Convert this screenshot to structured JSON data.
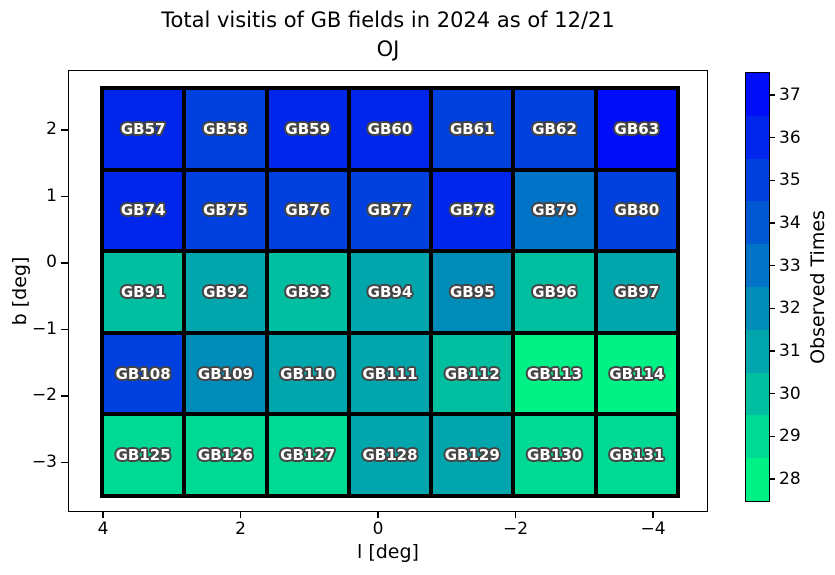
{
  "title": {
    "line1": "Total visitis of GB fields in 2024 as of 12/21",
    "line2": "OJ"
  },
  "axes": {
    "xlabel": "l [deg]",
    "ylabel": "b [deg]",
    "xticks": [
      "4",
      "2",
      "0",
      "−2",
      "−4"
    ],
    "yticks": [
      "2",
      "1",
      "0",
      "−1",
      "−2",
      "−3"
    ]
  },
  "colorbar": {
    "label": "Observed Times",
    "ticks": [
      "37",
      "36",
      "35",
      "34",
      "33",
      "32",
      "31",
      "30",
      "29",
      "28"
    ],
    "band_values": [
      37,
      36,
      35,
      34,
      33,
      32,
      31,
      30,
      29,
      28
    ],
    "vmin": 27.5,
    "vmax": 37.5,
    "colormap": "winter_r",
    "color_high": "#000df9",
    "color_low": "#00f286"
  },
  "chart_data": {
    "type": "heatmap",
    "title": "Total visitis of GB fields in 2024 as of 12/21 OJ",
    "xlabel": "l [deg]",
    "ylabel": "b [deg]",
    "value_label": "Observed Times",
    "xlim": [
      4.5,
      -4.8
    ],
    "ylim": [
      -3.7,
      2.9
    ],
    "x_axis_inverted": true,
    "l_centers_deg": [
      3.4,
      2.2,
      1.0,
      -0.2,
      -1.4,
      -2.6,
      -3.8
    ],
    "b_centers_deg": [
      2.0,
      0.8,
      -0.4,
      -1.7,
      -2.9
    ],
    "rows": [
      {
        "b_center": 2.0,
        "cells": [
          {
            "field": "GB57",
            "value": 36
          },
          {
            "field": "GB58",
            "value": 35
          },
          {
            "field": "GB59",
            "value": 36
          },
          {
            "field": "GB60",
            "value": 36
          },
          {
            "field": "GB61",
            "value": 35
          },
          {
            "field": "GB62",
            "value": 35
          },
          {
            "field": "GB63",
            "value": 37
          }
        ]
      },
      {
        "b_center": 0.8,
        "cells": [
          {
            "field": "GB74",
            "value": 36
          },
          {
            "field": "GB75",
            "value": 35
          },
          {
            "field": "GB76",
            "value": 35
          },
          {
            "field": "GB77",
            "value": 35
          },
          {
            "field": "GB78",
            "value": 36
          },
          {
            "field": "GB79",
            "value": 33
          },
          {
            "field": "GB80",
            "value": 35
          }
        ]
      },
      {
        "b_center": -0.4,
        "cells": [
          {
            "field": "GB91",
            "value": 30
          },
          {
            "field": "GB92",
            "value": 31
          },
          {
            "field": "GB93",
            "value": 30
          },
          {
            "field": "GB94",
            "value": 31
          },
          {
            "field": "GB95",
            "value": 32
          },
          {
            "field": "GB96",
            "value": 30
          },
          {
            "field": "GB97",
            "value": 31
          }
        ]
      },
      {
        "b_center": -1.7,
        "cells": [
          {
            "field": "GB108",
            "value": 35
          },
          {
            "field": "GB109",
            "value": 32
          },
          {
            "field": "GB110",
            "value": 31
          },
          {
            "field": "GB111",
            "value": 31
          },
          {
            "field": "GB112",
            "value": 30
          },
          {
            "field": "GB113",
            "value": 28
          },
          {
            "field": "GB114",
            "value": 28
          }
        ]
      },
      {
        "b_center": -2.9,
        "cells": [
          {
            "field": "GB125",
            "value": 29
          },
          {
            "field": "GB126",
            "value": 29
          },
          {
            "field": "GB127",
            "value": 29
          },
          {
            "field": "GB128",
            "value": 31
          },
          {
            "field": "GB129",
            "value": 31
          },
          {
            "field": "GB130",
            "value": 29
          },
          {
            "field": "GB131",
            "value": 29
          }
        ]
      }
    ]
  }
}
